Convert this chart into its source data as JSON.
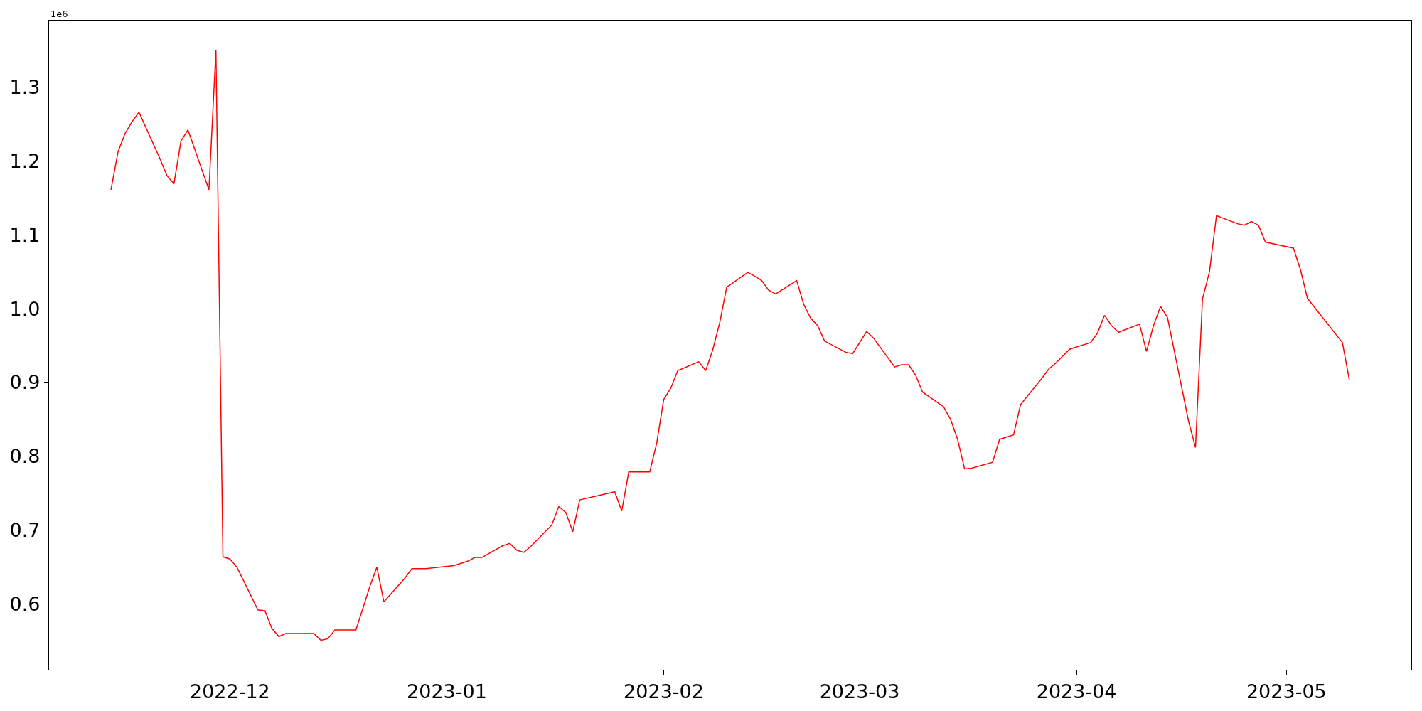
{
  "chart_data": {
    "type": "line",
    "x": [
      "2022-11-14",
      "2022-11-15",
      "2022-11-16",
      "2022-11-17",
      "2022-11-18",
      "2022-11-21",
      "2022-11-22",
      "2022-11-23",
      "2022-11-24",
      "2022-11-25",
      "2022-11-28",
      "2022-11-29",
      "2022-11-30",
      "2022-12-01",
      "2022-12-02",
      "2022-12-05",
      "2022-12-06",
      "2022-12-07",
      "2022-12-08",
      "2022-12-09",
      "2022-12-12",
      "2022-12-13",
      "2022-12-14",
      "2022-12-15",
      "2022-12-16",
      "2022-12-19",
      "2022-12-20",
      "2022-12-21",
      "2022-12-22",
      "2022-12-23",
      "2022-12-26",
      "2022-12-27",
      "2022-12-29",
      "2023-01-02",
      "2023-01-04",
      "2023-01-05",
      "2023-01-06",
      "2023-01-09",
      "2023-01-10",
      "2023-01-11",
      "2023-01-12",
      "2023-01-13",
      "2023-01-16",
      "2023-01-17",
      "2023-01-18",
      "2023-01-19",
      "2023-01-20",
      "2023-01-25",
      "2023-01-26",
      "2023-01-27",
      "2023-01-30",
      "2023-01-31",
      "2023-02-01",
      "2023-02-02",
      "2023-02-03",
      "2023-02-06",
      "2023-02-07",
      "2023-02-08",
      "2023-02-09",
      "2023-02-10",
      "2023-02-13",
      "2023-02-14",
      "2023-02-15",
      "2023-02-16",
      "2023-02-17",
      "2023-02-20",
      "2023-02-21",
      "2023-02-22",
      "2023-02-23",
      "2023-02-24",
      "2023-02-27",
      "2023-02-28",
      "2023-03-02",
      "2023-03-03",
      "2023-03-06",
      "2023-03-07",
      "2023-03-08",
      "2023-03-09",
      "2023-03-10",
      "2023-03-13",
      "2023-03-14",
      "2023-03-15",
      "2023-03-16",
      "2023-03-17",
      "2023-03-20",
      "2023-03-21",
      "2023-03-22",
      "2023-03-23",
      "2023-03-24",
      "2023-03-27",
      "2023-03-28",
      "2023-03-29",
      "2023-03-31",
      "2023-04-03",
      "2023-04-04",
      "2023-04-05",
      "2023-04-06",
      "2023-04-07",
      "2023-04-10",
      "2023-04-11",
      "2023-04-12",
      "2023-04-13",
      "2023-04-14",
      "2023-04-17",
      "2023-04-18",
      "2023-04-19",
      "2023-04-20",
      "2023-04-21",
      "2023-04-24",
      "2023-04-25",
      "2023-04-26",
      "2023-04-27",
      "2023-04-28",
      "2023-05-02",
      "2023-05-03",
      "2023-05-04",
      "2023-05-08",
      "2023-05-09",
      "2023-05-10"
    ],
    "series": [
      {
        "color": "#ff0000",
        "values": [
          1.161,
          1.212,
          1.237,
          1.253,
          1.266,
          1.203,
          1.18,
          1.169,
          1.227,
          1.242,
          1.161,
          1.35,
          0.664,
          0.661,
          0.65,
          0.592,
          0.591,
          0.567,
          0.556,
          0.56,
          0.56,
          0.56,
          0.551,
          0.553,
          0.565,
          0.565,
          0.594,
          0.624,
          0.65,
          0.603,
          0.635,
          0.648,
          0.648,
          0.652,
          0.658,
          0.663,
          0.663,
          0.679,
          0.682,
          0.673,
          0.67,
          0.678,
          0.707,
          0.732,
          0.724,
          0.698,
          0.741,
          0.752,
          0.726,
          0.779,
          0.779,
          0.818,
          0.877,
          0.892,
          0.916,
          0.928,
          0.916,
          0.944,
          0.981,
          1.029,
          1.049,
          1.044,
          1.038,
          1.025,
          1.02,
          1.038,
          1.006,
          0.987,
          0.977,
          0.956,
          0.941,
          0.939,
          0.969,
          0.96,
          0.921,
          0.924,
          0.924,
          0.91,
          0.887,
          0.867,
          0.85,
          0.823,
          0.783,
          0.784,
          0.792,
          0.823,
          0.826,
          0.829,
          0.87,
          0.905,
          0.918,
          0.926,
          0.945,
          0.954,
          0.967,
          0.991,
          0.977,
          0.968,
          0.979,
          0.942,
          0.977,
          1.003,
          0.988,
          0.848,
          0.812,
          1.013,
          1.05,
          1.126,
          1.115,
          1.113,
          1.118,
          1.113,
          1.09,
          1.082,
          1.053,
          1.014,
          0.966,
          0.954,
          0.903
        ]
      }
    ],
    "xlim": [
      "2022-11-05T03:36",
      "2023-05-18T20:24"
    ],
    "xticks": [
      {
        "value": "2022-12-01",
        "label": "2022-12"
      },
      {
        "value": "2023-01-01",
        "label": "2023-01"
      },
      {
        "value": "2023-02-01",
        "label": "2023-02"
      },
      {
        "value": "2023-03-01",
        "label": "2023-03"
      },
      {
        "value": "2023-04-01",
        "label": "2023-04"
      },
      {
        "value": "2023-05-01",
        "label": "2023-05"
      }
    ],
    "ylim": [
      0.511,
      1.39
    ],
    "yticks": [
      0.6,
      0.7,
      0.8,
      0.9,
      {
        "value": 1.0,
        "label": "1.0"
      },
      1.1,
      1.2,
      1.3
    ],
    "annotations": [
      "1e6"
    ],
    "marker": "none",
    "line_style": "solid"
  }
}
